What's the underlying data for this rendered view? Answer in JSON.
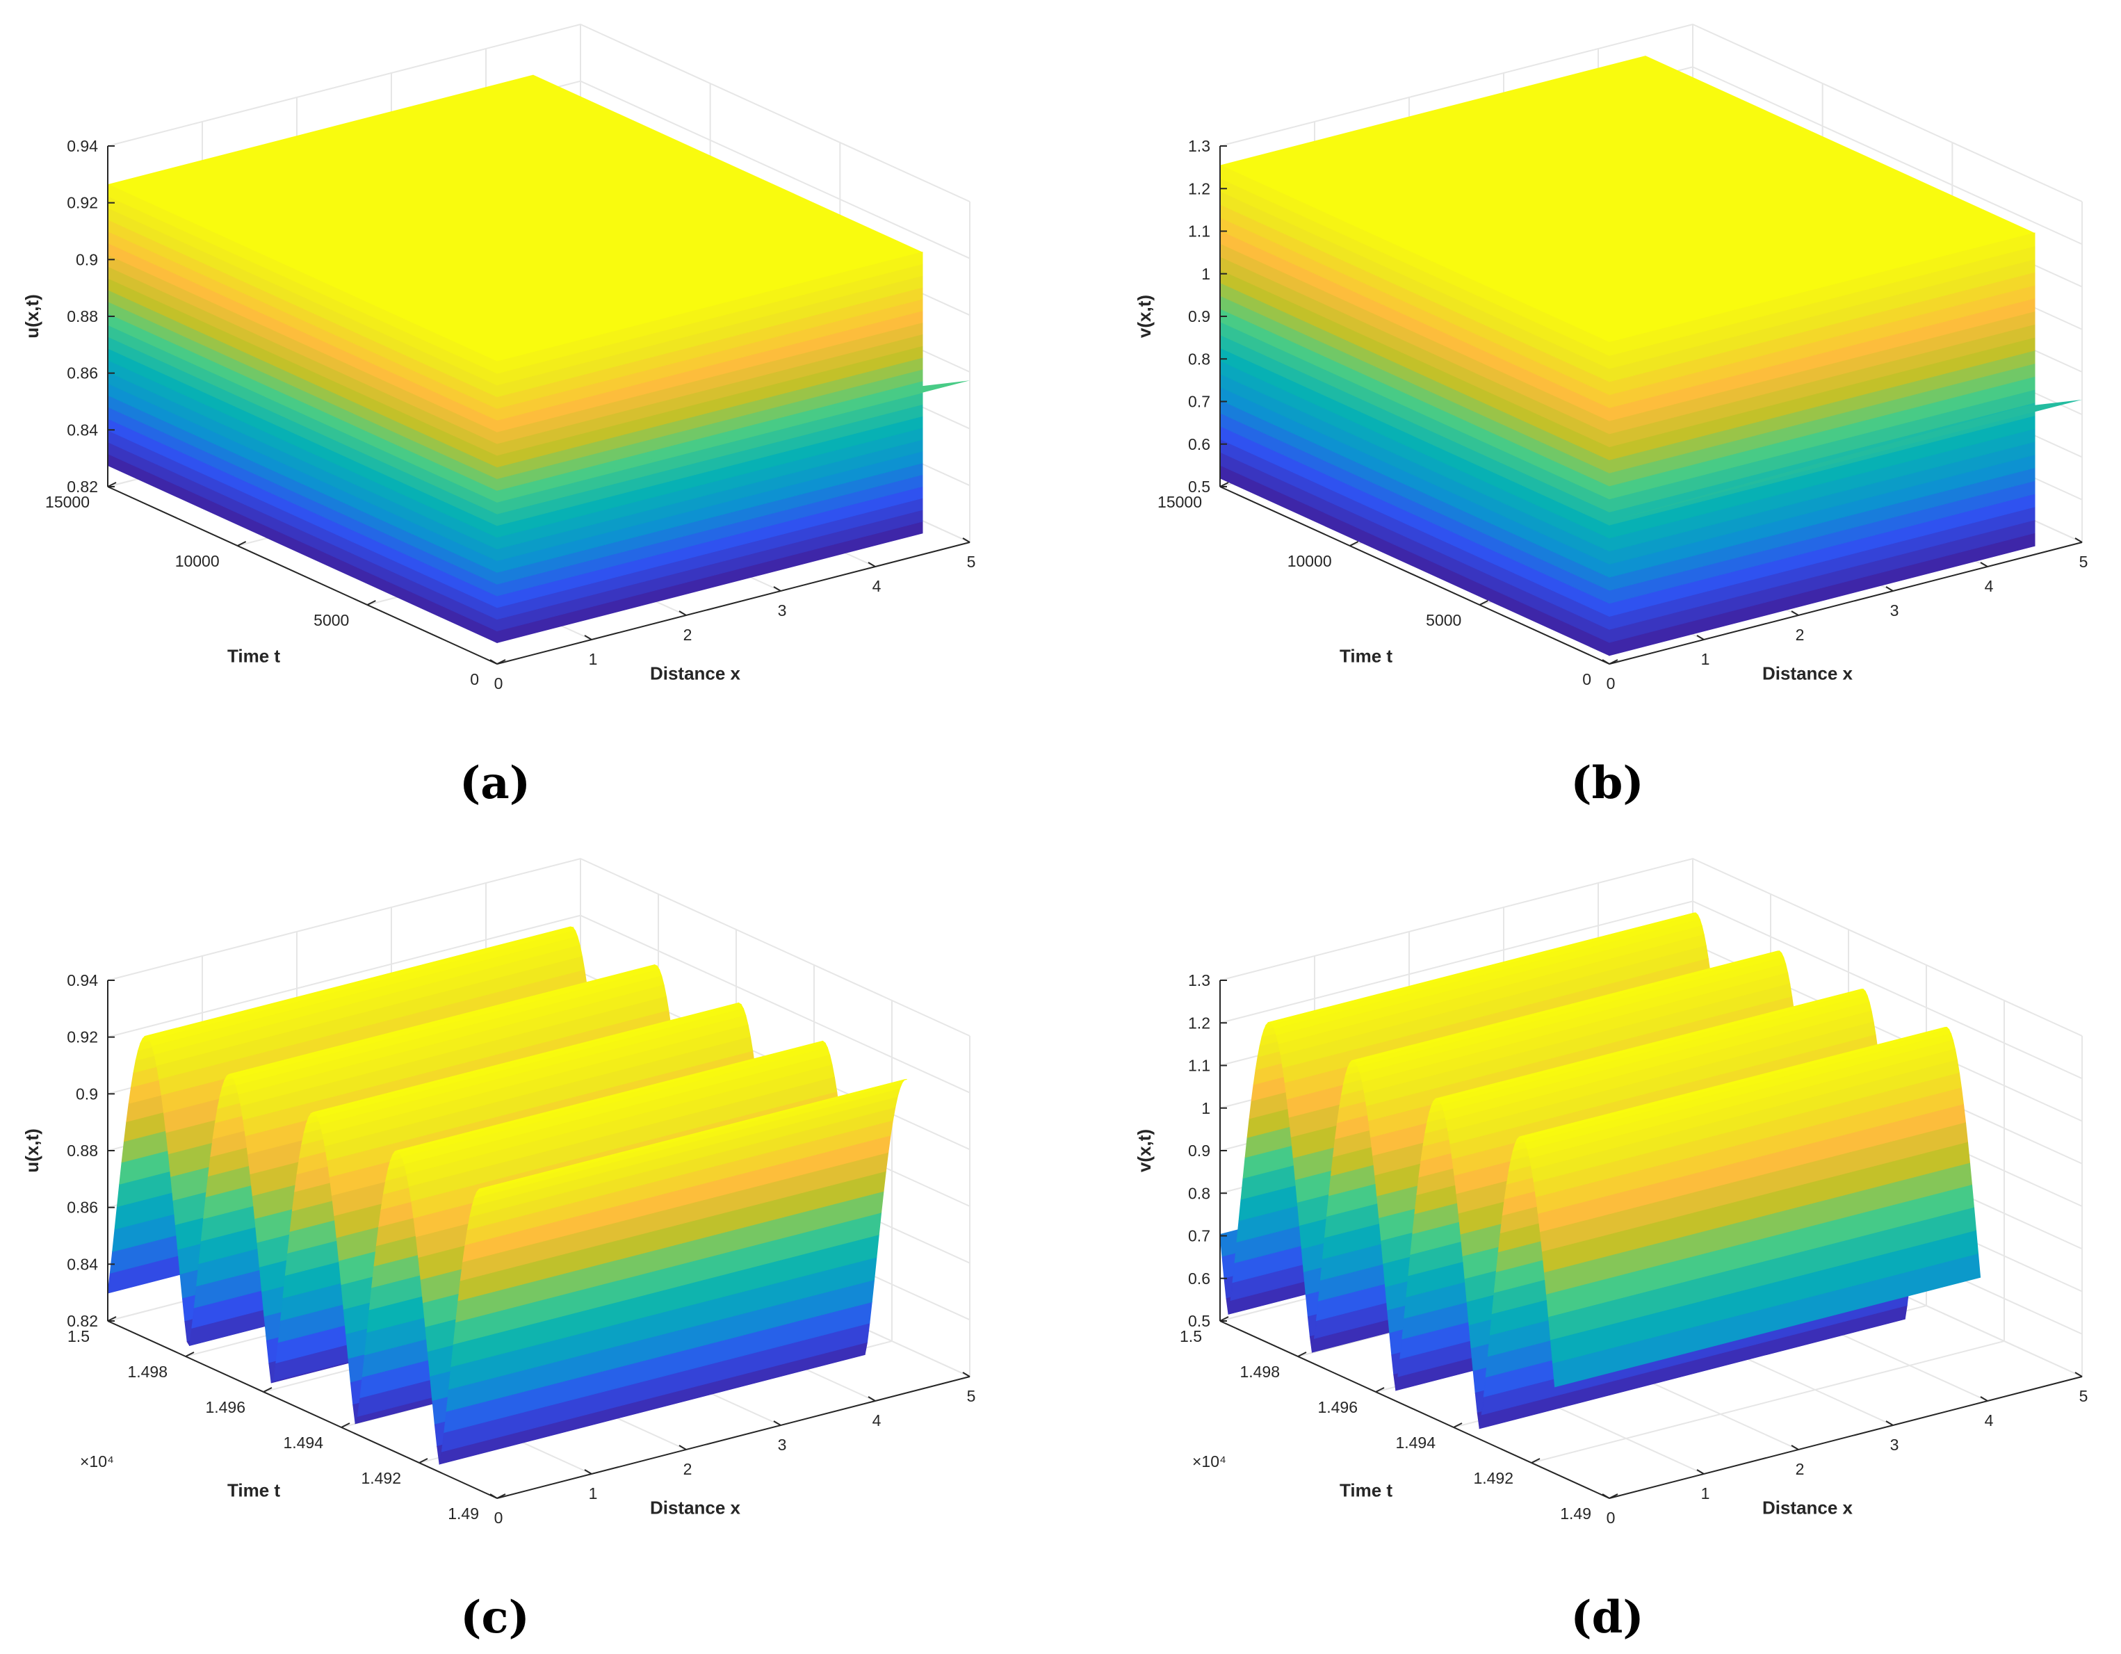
{
  "colormap": [
    "#3e26a8",
    "#2f52f0",
    "#0d92d1",
    "#07b1b4",
    "#48cb86",
    "#c3c129",
    "#fdbd3c",
    "#f0e620",
    "#f9fb0e"
  ],
  "chart_data": [
    {
      "type": "surface",
      "caption": "(a)",
      "xlabel": "Distance x",
      "ylabel": "Time t",
      "zlabel": "u(x,t)",
      "xlim": [
        0,
        5
      ],
      "ylim": [
        0,
        15000
      ],
      "zlim": [
        0.82,
        0.94
      ],
      "xticks": [
        "0",
        "1",
        "2",
        "3",
        "4",
        "5"
      ],
      "yticks": [
        "0",
        "5000",
        "10000",
        "15000"
      ],
      "zticks": [
        "0.82",
        "0.84",
        "0.86",
        "0.88",
        "0.9",
        "0.92",
        "0.94"
      ],
      "yexponent": "",
      "surface": {
        "pattern": "step",
        "t_range": [
          0,
          15000
        ],
        "x_range": [
          0,
          4.5
        ],
        "low": 0.8275,
        "high": 0.9265,
        "at_t0": 0.877,
        "x_tail": 0.5
      }
    },
    {
      "type": "surface",
      "caption": "(b)",
      "xlabel": "Distance x",
      "ylabel": "Time t",
      "zlabel": "v(x,t)",
      "xlim": [
        0,
        5
      ],
      "ylim": [
        0,
        15000
      ],
      "zlim": [
        0.5,
        1.3
      ],
      "xticks": [
        "0",
        "1",
        "2",
        "3",
        "4",
        "5"
      ],
      "yticks": [
        "0",
        "5000",
        "10000",
        "15000"
      ],
      "zticks": [
        "0.5",
        "0.6",
        "0.7",
        "0.8",
        "0.9",
        "1",
        "1.1",
        "1.2",
        "1.3"
      ],
      "yexponent": "",
      "surface": {
        "pattern": "step",
        "t_range": [
          0,
          15000
        ],
        "x_range": [
          0,
          4.5
        ],
        "low": 0.52,
        "high": 1.255,
        "at_t0": 0.835,
        "x_tail": 0.5
      }
    },
    {
      "type": "surface",
      "caption": "(c)",
      "xlabel": "Distance x",
      "ylabel": "Time t",
      "zlabel": "u(x,t)",
      "xlim": [
        0,
        5
      ],
      "ylim": [
        1.49,
        1.5
      ],
      "zlim": [
        0.82,
        0.94
      ],
      "xticks": [
        "0",
        "1",
        "2",
        "3",
        "4",
        "5"
      ],
      "yticks": [
        "1.49",
        "1.492",
        "1.494",
        "1.496",
        "1.498",
        "1.5"
      ],
      "zticks": [
        "0.82",
        "0.84",
        "0.86",
        "0.88",
        "0.9",
        "0.92",
        "0.94"
      ],
      "yexponent": "×10⁴",
      "surface": {
        "pattern": "wave",
        "t_range": [
          1.4904,
          1.5
        ],
        "x_range": [
          0,
          4.5
        ],
        "low": 0.8225,
        "high": 0.9265,
        "period": 0.00215,
        "phase": 0
      }
    },
    {
      "type": "surface",
      "caption": "(d)",
      "xlabel": "Distance x",
      "ylabel": "Time t",
      "zlabel": "v(x,t)",
      "xlim": [
        0,
        5
      ],
      "ylim": [
        1.49,
        1.5
      ],
      "zlim": [
        0.5,
        1.3
      ],
      "xticks": [
        "0",
        "1",
        "2",
        "3",
        "4",
        "5"
      ],
      "yticks": [
        "1.49",
        "1.492",
        "1.494",
        "1.496",
        "1.498",
        "1.5"
      ],
      "zticks": [
        "0.5",
        "0.6",
        "0.7",
        "0.8",
        "0.9",
        "1",
        "1.1",
        "1.2",
        "1.3"
      ],
      "yexponent": "×10⁴",
      "surface": {
        "pattern": "wave",
        "t_range": [
          1.4914,
          1.5
        ],
        "x_range": [
          0,
          4.5
        ],
        "low": 0.525,
        "high": 1.255,
        "period": 0.00215,
        "phase": 0.6
      }
    }
  ]
}
